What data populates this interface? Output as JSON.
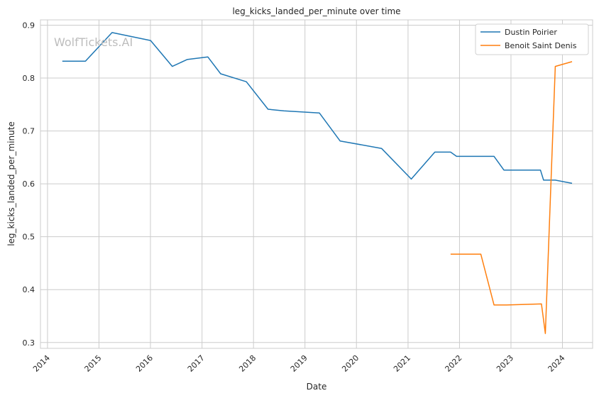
{
  "chart_data": {
    "type": "line",
    "title": "leg_kicks_landed_per_minute over time",
    "xlabel": "Date",
    "ylabel": "leg_kicks_landed_per_minute",
    "x_ticks": [
      "2014",
      "2015",
      "2016",
      "2017",
      "2018",
      "2019",
      "2020",
      "2021",
      "2022",
      "2023",
      "2024"
    ],
    "y_ticks": [
      "0.3",
      "0.4",
      "0.5",
      "0.6",
      "0.7",
      "0.8",
      "0.9"
    ],
    "xlim": [
      "2013-11-12",
      "2024-08-02"
    ],
    "ylim": [
      0.289,
      0.91
    ],
    "grid": true,
    "legend_position": "top-right",
    "watermark": "WolfTickets.AI",
    "series": [
      {
        "name": "Dustin Poirier",
        "color": "#1f77b4",
        "points": [
          {
            "x": "2014-04-16",
            "y": 0.832
          },
          {
            "x": "2014-09-27",
            "y": 0.832
          },
          {
            "x": "2015-04-04",
            "y": 0.886
          },
          {
            "x": "2016-01-02",
            "y": 0.871
          },
          {
            "x": "2016-06-04",
            "y": 0.822
          },
          {
            "x": "2016-09-17",
            "y": 0.835
          },
          {
            "x": "2017-02-11",
            "y": 0.84
          },
          {
            "x": "2017-05-13",
            "y": 0.808
          },
          {
            "x": "2017-11-11",
            "y": 0.793
          },
          {
            "x": "2018-04-14",
            "y": 0.741
          },
          {
            "x": "2018-08-04",
            "y": 0.738
          },
          {
            "x": "2019-04-13",
            "y": 0.734
          },
          {
            "x": "2019-09-07",
            "y": 0.681
          },
          {
            "x": "2020-06-27",
            "y": 0.667
          },
          {
            "x": "2021-01-24",
            "y": 0.609
          },
          {
            "x": "2021-07-10",
            "y": 0.66
          },
          {
            "x": "2021-10-30",
            "y": 0.66
          },
          {
            "x": "2021-12-11",
            "y": 0.652
          },
          {
            "x": "2022-09-03",
            "y": 0.652
          },
          {
            "x": "2022-11-12",
            "y": 0.626
          },
          {
            "x": "2023-07-29",
            "y": 0.626
          },
          {
            "x": "2023-08-20",
            "y": 0.607
          },
          {
            "x": "2023-11-11",
            "y": 0.607
          },
          {
            "x": "2024-03-09",
            "y": 0.601
          }
        ]
      },
      {
        "name": "Benoit Saint Denis",
        "color": "#ff7f0e",
        "points": [
          {
            "x": "2021-10-30",
            "y": 0.467
          },
          {
            "x": "2022-06-01",
            "y": 0.467
          },
          {
            "x": "2022-09-03",
            "y": 0.371
          },
          {
            "x": "2022-12-01",
            "y": 0.371
          },
          {
            "x": "2023-08-05",
            "y": 0.373
          },
          {
            "x": "2023-09-02",
            "y": 0.317
          },
          {
            "x": "2023-11-11",
            "y": 0.822
          },
          {
            "x": "2024-03-09",
            "y": 0.831
          }
        ]
      }
    ]
  }
}
